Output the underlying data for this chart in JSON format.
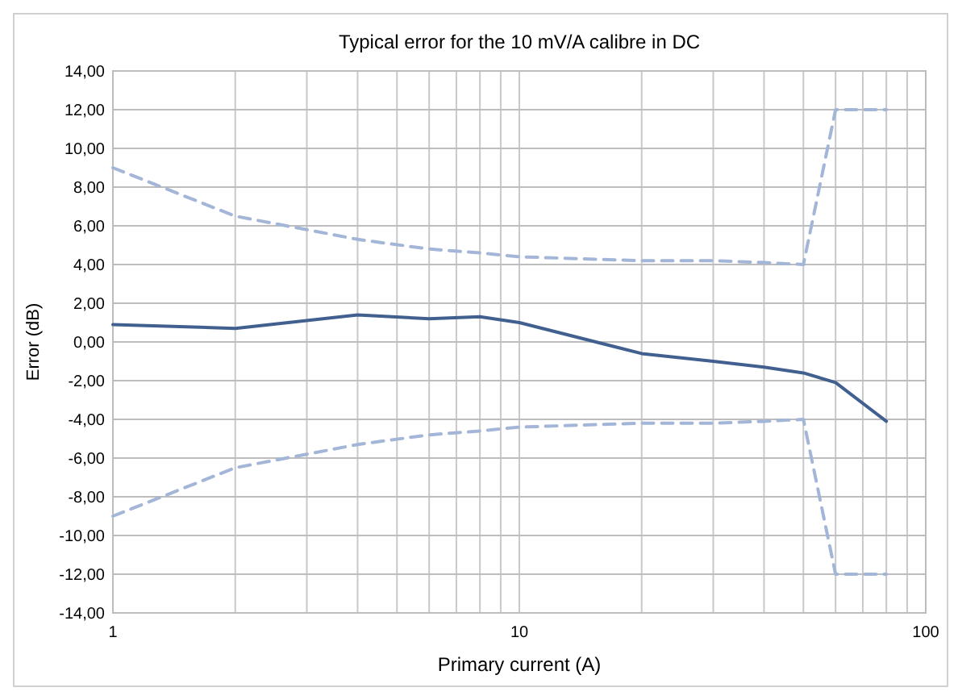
{
  "chart_data": {
    "type": "line",
    "title": "Typical error for the 10 mV/A calibre in DC",
    "xlabel": "Primary current (A)",
    "ylabel": "Error (dB)",
    "log": "x",
    "grid": true,
    "marker": "none",
    "xlim": [
      1,
      100
    ],
    "ylim": [
      -14,
      14
    ],
    "xticks": [
      1,
      {
        "value": 2,
        "label": null
      },
      {
        "value": 3,
        "label": null
      },
      {
        "value": 4,
        "label": null
      },
      {
        "value": 5,
        "label": null
      },
      {
        "value": 6,
        "label": null
      },
      {
        "value": 7,
        "label": null
      },
      {
        "value": 8,
        "label": null
      },
      {
        "value": 9,
        "label": null
      },
      10,
      {
        "value": 20,
        "label": null
      },
      {
        "value": 30,
        "label": null
      },
      {
        "value": 40,
        "label": null
      },
      {
        "value": 50,
        "label": null
      },
      {
        "value": 60,
        "label": null
      },
      {
        "value": 70,
        "label": null
      },
      {
        "value": 80,
        "label": null
      },
      {
        "value": 90,
        "label": null
      },
      100
    ],
    "yticks": [
      {
        "value": -14,
        "label": "-14,00"
      },
      {
        "value": -12,
        "label": "-12,00"
      },
      {
        "value": -10,
        "label": "-10,00"
      },
      {
        "value": -8,
        "label": "-8,00"
      },
      {
        "value": -6,
        "label": "-6,00"
      },
      {
        "value": -4,
        "label": "-4,00"
      },
      {
        "value": -2,
        "label": "-2,00"
      },
      {
        "value": 0,
        "label": "0,00"
      },
      {
        "value": 2,
        "label": "2,00"
      },
      {
        "value": 4,
        "label": "4,00"
      },
      {
        "value": 6,
        "label": "6,00"
      },
      {
        "value": 8,
        "label": "8,00"
      },
      {
        "value": 10,
        "label": "10,00"
      },
      {
        "value": 12,
        "label": "12,00"
      },
      {
        "value": 14,
        "label": "14,00"
      }
    ],
    "series": [
      {
        "color": "#a3b6d8",
        "line_style": "dashed",
        "x": [
          1,
          2,
          3,
          4,
          6,
          8,
          10,
          20,
          30,
          40,
          50,
          60,
          80
        ],
        "values": [
          9,
          6.5,
          5.8,
          5.3,
          4.8,
          4.6,
          4.4,
          4.2,
          4.2,
          4.1,
          4,
          12,
          12
        ]
      },
      {
        "color": "#a3b6d8",
        "line_style": "dashed",
        "x": [
          1,
          2,
          3,
          4,
          6,
          8,
          10,
          20,
          30,
          40,
          50,
          60,
          80
        ],
        "values": [
          -9,
          -6.5,
          -5.8,
          -5.3,
          -4.8,
          -4.6,
          -4.4,
          -4.2,
          -4.2,
          -4.1,
          -4,
          -12,
          -12
        ]
      },
      {
        "color": "#41608f",
        "line_style": "solid",
        "x": [
          1,
          2,
          4,
          6,
          8,
          10,
          20,
          30,
          40,
          50,
          60,
          80
        ],
        "values": [
          0.9,
          0.7,
          1.4,
          1.2,
          1.3,
          1.0,
          -0.6,
          -1.0,
          -1.3,
          -1.6,
          -2.1,
          -4.1
        ]
      }
    ]
  }
}
